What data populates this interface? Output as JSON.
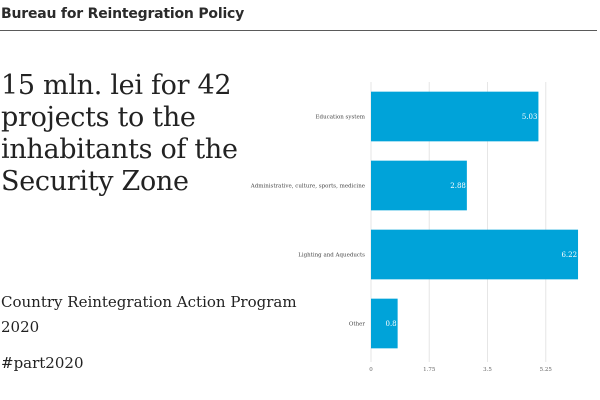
{
  "header": {
    "title": "Bureau for Reintegration Policy"
  },
  "headline": "15 mln. lei for 42 projects to the inhabitants of the Security Zone",
  "subtitle": "Country Reintegration Action Program 2020",
  "hashtag": "#part2020",
  "colors": {
    "bar": "#00a3d9",
    "grid": "#e6e6e6",
    "text": "#222222"
  },
  "chart_data": {
    "type": "bar",
    "orientation": "horizontal",
    "title": "",
    "xlabel": "",
    "ylabel": "",
    "categories": [
      "Education system",
      "Administrative, culture, sports, medicine",
      "Lighting and Aqueducts",
      "Other"
    ],
    "values": [
      5.03,
      2.88,
      6.22,
      0.8
    ],
    "value_labels": [
      "5.03",
      "2.88",
      "6.22",
      "0.8"
    ],
    "xlim": [
      0,
      7
    ],
    "x_ticks": [
      0,
      1.75,
      3.5,
      5.25
    ],
    "x_tick_labels": [
      "0",
      "1.75",
      "3.5",
      "5.25"
    ],
    "grid": true,
    "legend": "none"
  }
}
